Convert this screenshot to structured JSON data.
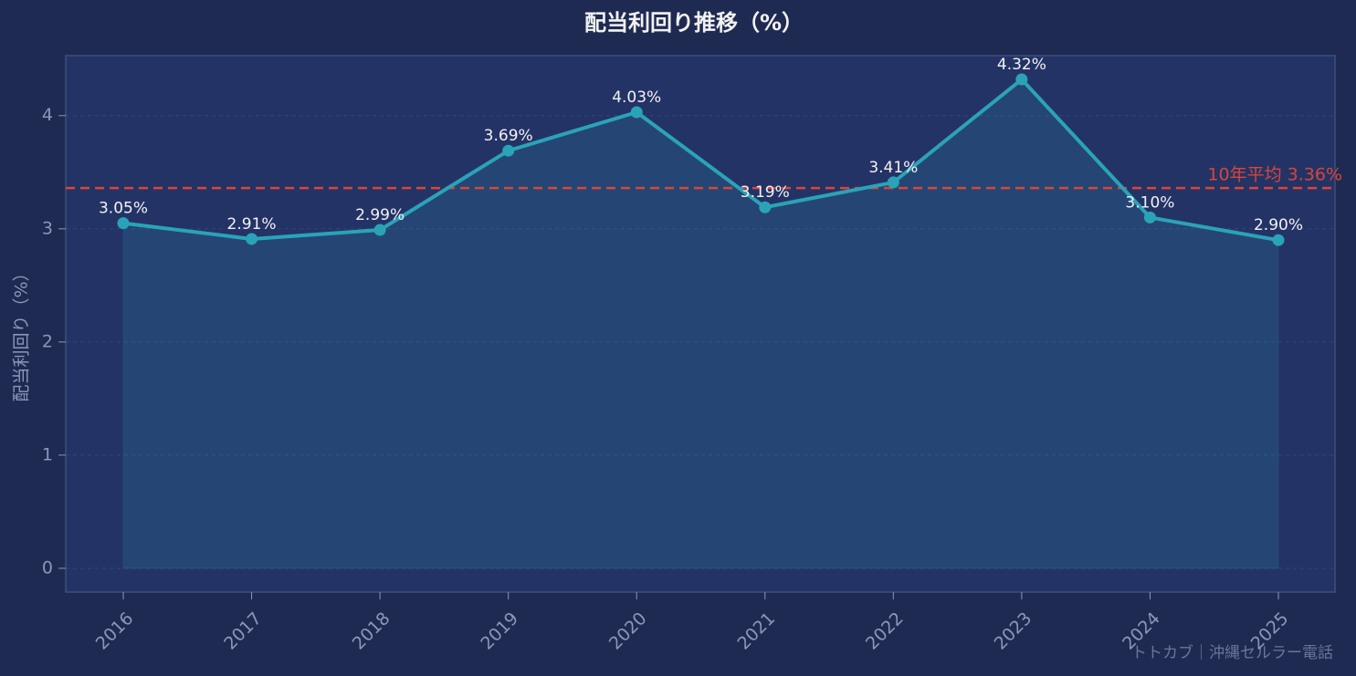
{
  "chart_data": {
    "type": "line",
    "title": "配当利回り推移（%）",
    "y_label": "配当利回り（%）",
    "categories": [
      "2016",
      "2017",
      "2018",
      "2019",
      "2020",
      "2021",
      "2022",
      "2023",
      "2024",
      "2025"
    ],
    "values": [
      3.05,
      2.91,
      2.99,
      3.69,
      4.03,
      3.19,
      3.41,
      4.32,
      3.1,
      2.9
    ],
    "value_labels": [
      "3.05%",
      "2.91%",
      "2.99%",
      "3.69%",
      "4.03%",
      "3.19%",
      "3.41%",
      "4.32%",
      "3.10%",
      "2.90%"
    ],
    "color": "#2aa3b8",
    "ylim": [
      -0.21,
      4.53
    ],
    "yticks": [
      0,
      1,
      2,
      3,
      4
    ],
    "grid": true,
    "average": {
      "value": 3.36,
      "label": "10年平均 3.36%",
      "color": "#d9453a"
    },
    "watermark": "トトカブ｜沖縄セルラー電話"
  }
}
